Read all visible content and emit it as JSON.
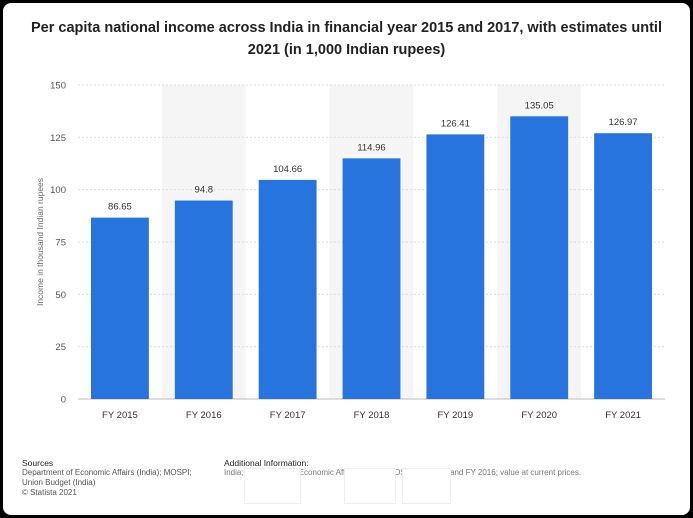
{
  "chart_data": {
    "type": "bar",
    "title": "Per capita national income across India in financial year 2015 and 2017, with estimates until 2021 (in 1,000 Indian rupees)",
    "categories": [
      "FY 2015",
      "FY 2016",
      "FY 2017",
      "FY 2018",
      "FY 2019",
      "FY 2020",
      "FY 2021"
    ],
    "values": [
      86.65,
      94.8,
      104.66,
      114.96,
      126.41,
      135.05,
      126.97
    ],
    "value_labels": [
      "86.65",
      "94.8",
      "104.66",
      "114.96",
      "126.41",
      "135.05",
      "126.97"
    ],
    "ylabel": "Income in thousand Indian rupees",
    "xlabel": "",
    "ylim": [
      0,
      150
    ],
    "yticks": [
      0,
      25,
      50,
      75,
      100,
      125,
      150
    ],
    "grid": true,
    "bar_color": "#2874de"
  },
  "footer": {
    "sources_heading": "Sources",
    "sources_lines": [
      "Department of Economic Affairs (India); MOSPI;",
      "Union Budget (India)",
      "© Statista 2021"
    ],
    "additional_heading": "Additional Information:",
    "additional_text": "India; Department of Economic Affairs (India); MOSPI; FY 2015 and FY 2016; value at current prices."
  }
}
